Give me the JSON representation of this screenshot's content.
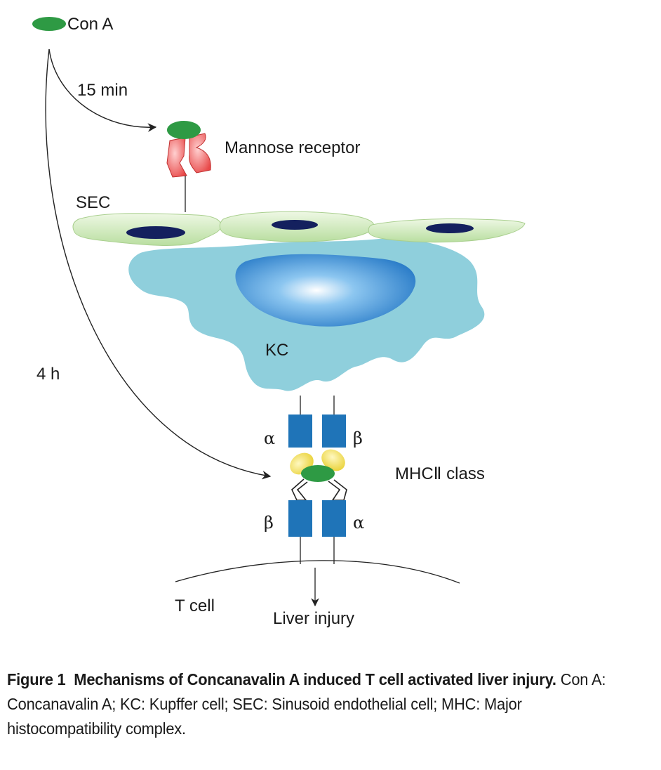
{
  "labels": {
    "con_a": "Con A",
    "time_15": "15 min",
    "time_4h": "4 h",
    "mannose_receptor": "Mannose receptor",
    "sec": "SEC",
    "kc": "KC",
    "alpha": "α",
    "beta": "β",
    "mhc_class": "MHCⅡ class",
    "t_cell": "T cell",
    "liver_injury": "Liver injury"
  },
  "caption": {
    "figure_number": "Figure 1",
    "title": "Mechanisms of Concanavalin A induced T cell activated liver injury.",
    "abbreviations": "Con A: Concanavalin A; KC: Kupffer cell; SEC: Sinusoid endothelial cell; MHC: Major histocompatibility complex."
  },
  "colors": {
    "con_a": "#2e9a44",
    "receptor": "#ee5a5a",
    "sec_cell": "#d6ecc0",
    "nucleus": "#14205e",
    "kupffer_cell": "#8fcfdc",
    "kc_nucleus": "#3a8fd4",
    "mhc_block": "#1f74b8",
    "peptide": "#f2e15a"
  }
}
